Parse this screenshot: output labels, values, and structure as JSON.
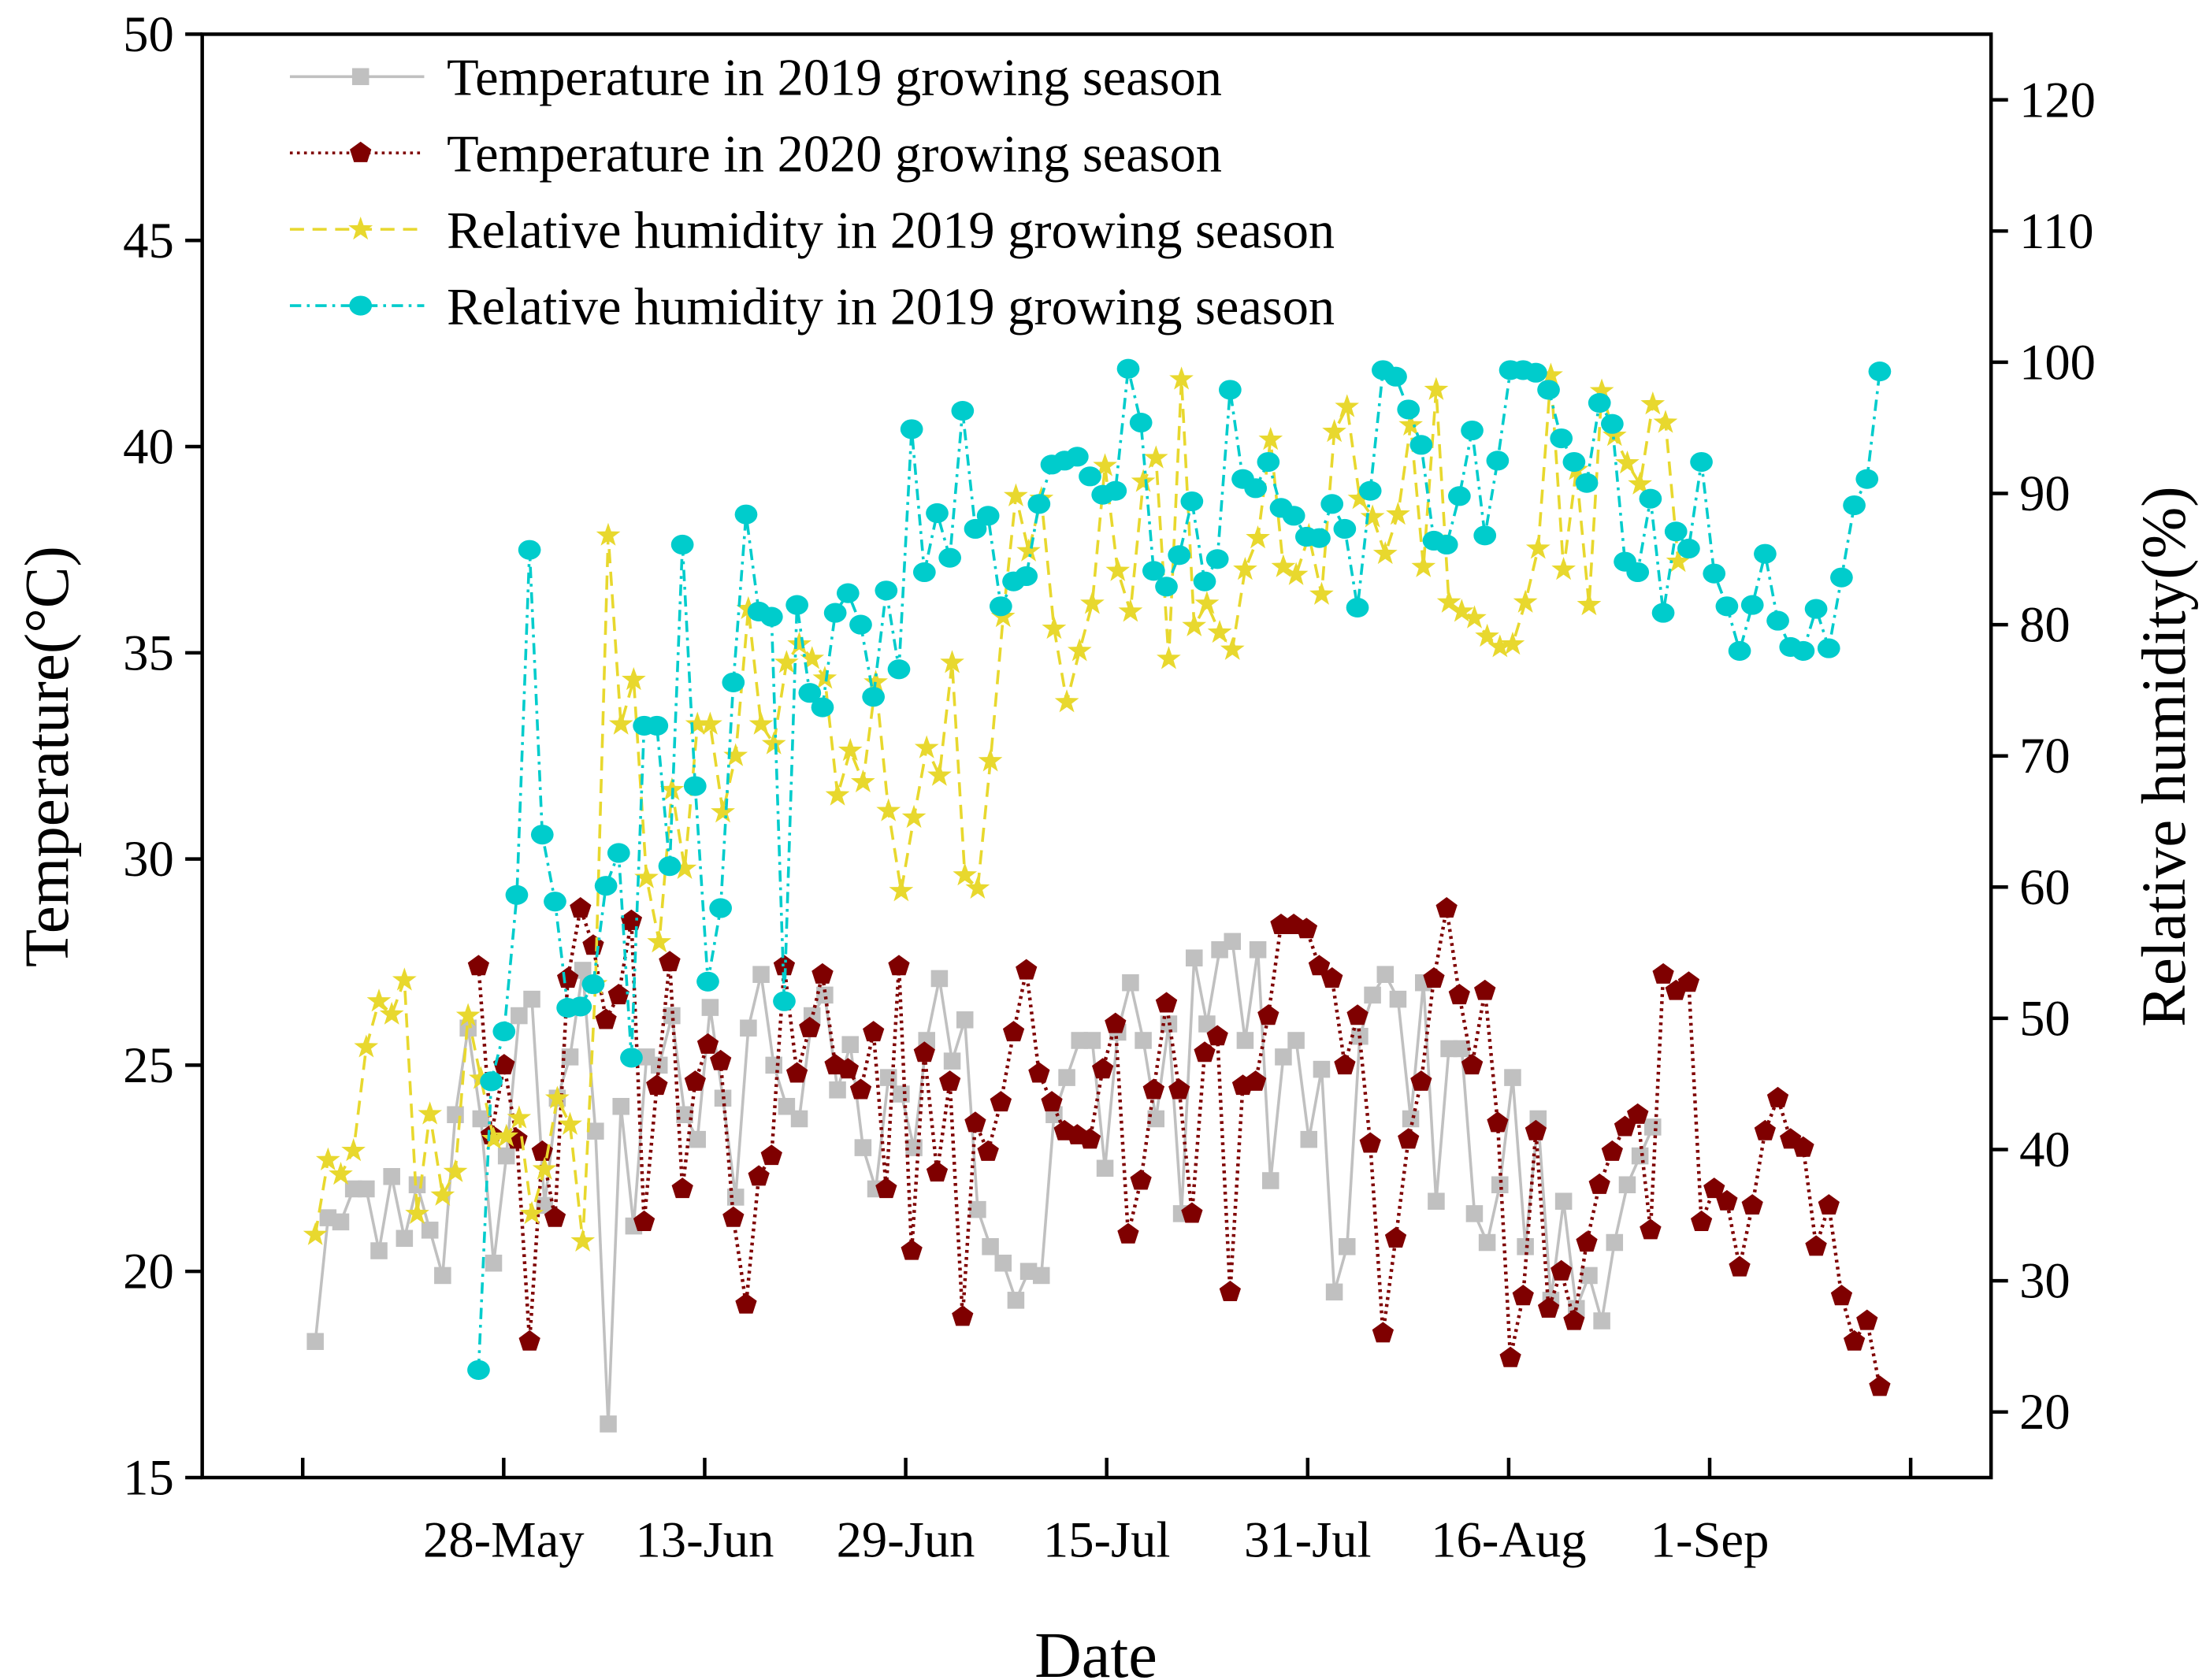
{
  "chart_data": {
    "type": "line",
    "xlabel": "Date",
    "ylabel_left": "Temperature(°C)",
    "ylabel_right": "Relative humidity(%)",
    "x_unit": "days since 12-May",
    "xlim": [
      -8,
      134.4
    ],
    "ylim_left": [
      15,
      50
    ],
    "ylim_right": [
      15,
      125
    ],
    "left_ticks": [
      15,
      20,
      25,
      30,
      35,
      40,
      45,
      50
    ],
    "right_ticks": [
      20,
      30,
      40,
      50,
      60,
      70,
      80,
      90,
      100,
      110,
      120
    ],
    "x_ticks": [
      {
        "day": 0,
        "label": ""
      },
      {
        "day": 16,
        "label": "28-May"
      },
      {
        "day": 32,
        "label": "13-Jun"
      },
      {
        "day": 48,
        "label": "29-Jun"
      },
      {
        "day": 64,
        "label": "15-Jul"
      },
      {
        "day": 80,
        "label": "31-Jul"
      },
      {
        "day": 96,
        "label": "16-Aug"
      },
      {
        "day": 112,
        "label": "1-Sep"
      },
      {
        "day": 128,
        "label": ""
      }
    ],
    "grid": false,
    "legend_position": "top-left",
    "series": [
      {
        "name": "Temperature in 2019 growing season",
        "axis": "left",
        "marker": "square",
        "line": "solid",
        "color": "#c0c0c0",
        "start_day": 1,
        "step_days": 1.014,
        "values": [
          18.3,
          21.3,
          21.2,
          22.0,
          22.0,
          20.5,
          22.3,
          20.8,
          22.1,
          21.0,
          19.9,
          23.8,
          25.9,
          23.7,
          20.2,
          22.8,
          26.2,
          26.6,
          21.6,
          24.2,
          25.2,
          27.3,
          23.4,
          16.3,
          24.0,
          21.1,
          25.2,
          25.0,
          26.2,
          23.8,
          23.2,
          26.4,
          24.2,
          21.8,
          25.9,
          27.2,
          25.0,
          24.0,
          23.7,
          26.2,
          26.7,
          24.4,
          25.5,
          23.0,
          22.0,
          24.7,
          24.3,
          23.0,
          25.6,
          27.1,
          25.1,
          26.1,
          21.5,
          20.6,
          20.2,
          19.3,
          20.0,
          19.9,
          23.8,
          24.7,
          25.6,
          25.6,
          22.5,
          25.8,
          27.0,
          25.6,
          23.7,
          26.0,
          21.4,
          27.6,
          26.0,
          27.8,
          28.0,
          25.6,
          27.8,
          22.2,
          25.2,
          25.6,
          23.2,
          24.9,
          19.5,
          20.6,
          25.7,
          26.7,
          27.2,
          26.6,
          23.7,
          27.0,
          21.7,
          25.4,
          25.4,
          21.4,
          20.7,
          22.1,
          24.7,
          20.6,
          23.7,
          19.3,
          21.7,
          19.1,
          19.9,
          18.8,
          20.7,
          22.1,
          22.8,
          23.5
        ]
      },
      {
        "name": "Temperature in 2020 growing season",
        "axis": "left",
        "marker": "pentagon",
        "line": "dotted",
        "color": "#7f0000",
        "start_day": 14,
        "step_days": 1.014,
        "values": [
          27.4,
          23.3,
          25.0,
          23.2,
          18.3,
          22.9,
          21.3,
          27.1,
          28.8,
          27.9,
          26.1,
          26.7,
          28.5,
          21.2,
          24.5,
          27.5,
          22.0,
          24.6,
          25.5,
          25.1,
          21.3,
          19.2,
          22.3,
          22.8,
          27.4,
          24.8,
          25.9,
          27.2,
          25.0,
          24.9,
          24.4,
          25.8,
          22.0,
          27.4,
          20.5,
          25.3,
          22.4,
          24.6,
          18.9,
          23.6,
          22.9,
          24.1,
          25.8,
          27.3,
          24.8,
          24.1,
          23.4,
          23.3,
          23.2,
          24.9,
          26.0,
          20.9,
          22.2,
          24.4,
          26.5,
          24.4,
          21.4,
          25.3,
          25.7,
          19.5,
          24.5,
          24.6,
          26.2,
          28.4,
          28.4,
          28.3,
          27.4,
          27.1,
          25.0,
          26.2,
          23.1,
          18.5,
          20.8,
          23.2,
          24.6,
          27.1,
          28.8,
          26.7,
          25.0,
          26.8,
          23.6,
          17.9,
          19.4,
          23.4,
          19.1,
          20.0,
          18.8,
          20.7,
          22.1,
          22.9,
          23.5,
          23.8,
          21.0,
          27.2,
          26.8,
          27.0,
          21.2,
          22.0,
          21.7,
          20.1,
          21.6,
          23.4,
          24.2,
          23.2,
          23.0,
          20.6,
          21.6,
          19.4,
          18.3,
          18.8,
          17.2
        ]
      },
      {
        "name": "Relative humidity in 2019 growing season",
        "axis": "right",
        "marker": "star",
        "line": "dashed",
        "color": "#e8d82e",
        "start_day": 1,
        "step_days": 1.014,
        "values": [
          33.5,
          39.2,
          38.1,
          39.9,
          47.8,
          51.3,
          50.3,
          52.9,
          35.1,
          42.7,
          36.5,
          38.3,
          50.2,
          45.4,
          40.8,
          41.0,
          42.4,
          35.1,
          38.5,
          43.9,
          41.9,
          33.0,
          52.6,
          86.8,
          72.4,
          75.8,
          60.7,
          55.8,
          67.4,
          61.4,
          72.4,
          72.4,
          65.7,
          70.0,
          81.2,
          72.4,
          70.9,
          77.1,
          78.5,
          77.4,
          75.9,
          67.0,
          70.4,
          68.0,
          75.6,
          65.8,
          59.7,
          65.3,
          70.6,
          68.5,
          77.1,
          60.9,
          59.9,
          69.6,
          80.6,
          89.8,
          85.6,
          89.6,
          79.7,
          74.1,
          78.0,
          81.6,
          92.1,
          84.1,
          81.0,
          90.9,
          92.7,
          77.4,
          98.7,
          79.9,
          81.6,
          79.4,
          78.1,
          84.2,
          86.6,
          94.1,
          84.4,
          83.8,
          86.8,
          82.3,
          94.7,
          96.6,
          89.6,
          88.2,
          85.4,
          88.4,
          95.2,
          84.4,
          97.9,
          81.7,
          81.0,
          80.5,
          79.1,
          78.3,
          78.5,
          81.7,
          85.8,
          99.0,
          84.2,
          91.8,
          81.5,
          97.8,
          94.4,
          92.3,
          90.7,
          96.8,
          95.4,
          84.8
        ]
      },
      {
        "name": "Relative humidity in 2019 growing season",
        "axis": "right",
        "marker": "circle",
        "line": "dashdot",
        "color": "#00cccc",
        "start_day": 14,
        "step_days": 1.014,
        "values": [
          23.2,
          45.2,
          49.0,
          59.4,
          85.7,
          64.0,
          58.9,
          50.8,
          50.9,
          52.6,
          60.1,
          62.6,
          47.0,
          72.3,
          72.3,
          61.6,
          86.1,
          67.7,
          52.8,
          58.4,
          75.6,
          88.4,
          81.0,
          80.6,
          51.3,
          81.5,
          74.8,
          73.7,
          80.9,
          82.4,
          80.0,
          74.5,
          82.6,
          76.6,
          94.9,
          84.0,
          88.5,
          85.1,
          96.3,
          87.3,
          88.3,
          81.4,
          83.3,
          83.7,
          89.2,
          92.2,
          92.5,
          92.8,
          91.3,
          89.9,
          90.2,
          99.5,
          95.4,
          84.1,
          82.9,
          85.3,
          89.4,
          83.3,
          85.0,
          97.9,
          91.1,
          90.4,
          92.4,
          88.9,
          88.3,
          86.7,
          86.6,
          89.2,
          87.3,
          81.3,
          90.2,
          99.4,
          98.9,
          96.4,
          93.7,
          86.4,
          86.1,
          89.8,
          94.8,
          86.8,
          92.5,
          99.4,
          99.4,
          99.2,
          97.9,
          94.2,
          92.4,
          90.8,
          96.9,
          95.3,
          84.8,
          84.0,
          89.6,
          80.9,
          87.1,
          85.8,
          92.4,
          83.9,
          81.4,
          78.0,
          81.5,
          85.4,
          80.3,
          78.3,
          78.0,
          81.2,
          78.2,
          83.6,
          89.1,
          91.1,
          99.3
        ]
      }
    ]
  }
}
